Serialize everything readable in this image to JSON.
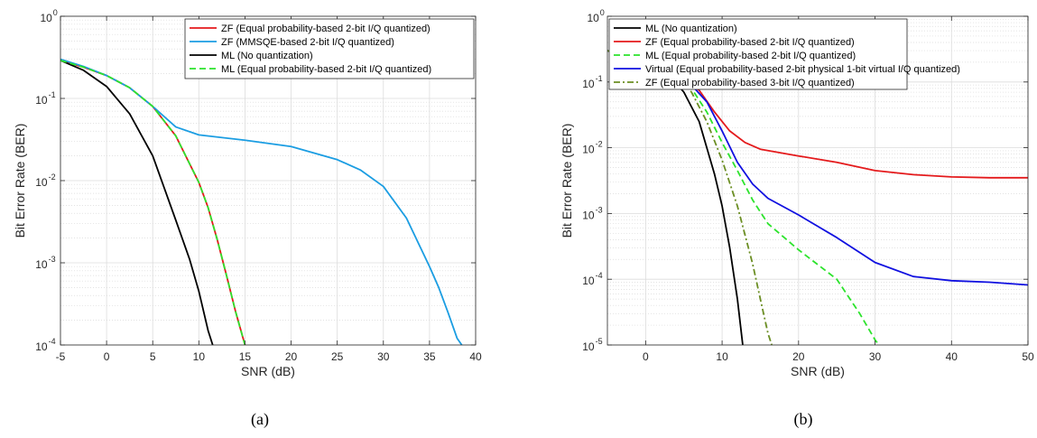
{
  "chart_data": [
    {
      "type": "line",
      "caption": "(a)",
      "xlabel": "SNR (dB)",
      "ylabel": "Bit Error Rate (BER)",
      "xlim": [
        -5,
        40
      ],
      "ylim": [
        0.0001,
        1
      ],
      "yscale": "log",
      "grid": true,
      "legend_position": "top-right",
      "xticks": [
        -5,
        0,
        5,
        10,
        15,
        20,
        25,
        30,
        35,
        40
      ],
      "yticks": [
        {
          "value": 1,
          "base": "10",
          "exp": "0"
        },
        {
          "value": 0.1,
          "base": "10",
          "exp": "-1"
        },
        {
          "value": 0.01,
          "base": "10",
          "exp": "-2"
        },
        {
          "value": 0.001,
          "base": "10",
          "exp": "-3"
        },
        {
          "value": 0.0001,
          "base": "10",
          "exp": "-4"
        }
      ],
      "series": [
        {
          "name": "ZF (Equal probability-based 2-bit I/Q quantized)",
          "color": "#e41a1c",
          "dash": "solid",
          "x": [
            -5,
            -2.5,
            0,
            2.5,
            5,
            7.5,
            10,
            11,
            12,
            13,
            14,
            15
          ],
          "y": [
            0.29,
            0.24,
            0.19,
            0.135,
            0.08,
            0.035,
            0.0095,
            0.0047,
            0.0019,
            0.0007,
            0.00025,
            0.0001
          ]
        },
        {
          "name": "ZF (MMSQE-based 2-bit I/Q quantized)",
          "color": "#1b9de2",
          "dash": "solid",
          "x": [
            -5,
            -2.5,
            0,
            2.5,
            5,
            7.5,
            10,
            15,
            20,
            25,
            27.5,
            30,
            32.5,
            35,
            36,
            37,
            38,
            38.5
          ],
          "y": [
            0.3,
            0.245,
            0.19,
            0.135,
            0.08,
            0.045,
            0.036,
            0.031,
            0.026,
            0.018,
            0.0135,
            0.0085,
            0.0035,
            0.0009,
            0.0005,
            0.00025,
            0.00012,
            0.0001
          ]
        },
        {
          "name": "ML (No quantization)",
          "color": "#000000",
          "dash": "solid",
          "x": [
            -5,
            -2.5,
            0,
            2.5,
            5,
            7.5,
            9,
            10,
            11,
            11.5
          ],
          "y": [
            0.29,
            0.22,
            0.14,
            0.065,
            0.02,
            0.0033,
            0.0011,
            0.00045,
            0.00015,
            0.0001
          ]
        },
        {
          "name": "ML (Equal probability-based 2-bit I/Q quantized)",
          "color": "#2ce32c",
          "dash": "dashed",
          "x": [
            -5,
            -2.5,
            0,
            2.5,
            5,
            7.5,
            10,
            11,
            12,
            13,
            14,
            15
          ],
          "y": [
            0.29,
            0.24,
            0.19,
            0.135,
            0.08,
            0.035,
            0.0095,
            0.0047,
            0.0019,
            0.0007,
            0.00025,
            0.0001
          ]
        }
      ]
    },
    {
      "type": "line",
      "caption": "(b)",
      "xlabel": "SNR (dB)",
      "ylabel": "Bit Error Rate (BER)",
      "xlim": [
        -5,
        50
      ],
      "ylim": [
        1e-05,
        1
      ],
      "yscale": "log",
      "grid": true,
      "legend_position": "top-left",
      "xticks": [
        0,
        10,
        20,
        30,
        40,
        50
      ],
      "yticks": [
        {
          "value": 1,
          "base": "10",
          "exp": "0"
        },
        {
          "value": 0.1,
          "base": "10",
          "exp": "-1"
        },
        {
          "value": 0.01,
          "base": "10",
          "exp": "-2"
        },
        {
          "value": 0.001,
          "base": "10",
          "exp": "-3"
        },
        {
          "value": 0.0001,
          "base": "10",
          "exp": "-4"
        },
        {
          "value": 1e-05,
          "base": "10",
          "exp": "-5"
        }
      ],
      "series": [
        {
          "name": "ML (No quantization)",
          "color": "#000000",
          "dash": "solid",
          "x": [
            -5,
            0,
            3,
            5,
            7,
            9,
            10,
            11,
            12,
            12.7
          ],
          "y": [
            0.3,
            0.2,
            0.13,
            0.07,
            0.025,
            0.004,
            0.0013,
            0.0003,
            5e-05,
            1e-05
          ]
        },
        {
          "name": "ZF (Equal probability-based 2-bit I/Q quantized)",
          "color": "#e41a1c",
          "dash": "solid",
          "x": [
            -5,
            0,
            4,
            7,
            9,
            11,
            13,
            15,
            20,
            25,
            30,
            35,
            40,
            45,
            50
          ],
          "y": [
            0.3,
            0.2,
            0.14,
            0.075,
            0.035,
            0.018,
            0.012,
            0.0095,
            0.0075,
            0.006,
            0.0045,
            0.0039,
            0.0036,
            0.0035,
            0.0035
          ]
        },
        {
          "name": "ML (Equal probability-based 2-bit I/Q quantized)",
          "color": "#2ce32c",
          "dash": "dashed",
          "x": [
            -5,
            0,
            4,
            6,
            8,
            10,
            12,
            14,
            16,
            20,
            25,
            28,
            30,
            30.5
          ],
          "y": [
            0.3,
            0.2,
            0.14,
            0.08,
            0.035,
            0.012,
            0.0045,
            0.0016,
            0.0007,
            0.00028,
            0.0001,
            3e-05,
            1.2e-05,
            1e-05
          ]
        },
        {
          "name": "Virtual (Equal probability-based 2-bit physical 1-bit virtual I/Q quantized)",
          "color": "#1010e0",
          "dash": "solid",
          "x": [
            -5,
            0,
            4,
            6,
            8,
            10,
            12,
            14,
            16,
            20,
            25,
            30,
            35,
            40,
            45,
            50
          ],
          "y": [
            0.3,
            0.2,
            0.14,
            0.09,
            0.05,
            0.018,
            0.006,
            0.0028,
            0.0017,
            0.00095,
            0.00043,
            0.00018,
            0.00011,
            9.5e-05,
            9e-05,
            8.2e-05
          ]
        },
        {
          "name": "ZF (Equal probability-based 3-bit I/Q quantized)",
          "color": "#6b8e23",
          "dash": "dashdot",
          "x": [
            -5,
            0,
            4,
            6,
            8,
            10,
            12,
            14,
            15,
            16,
            16.5
          ],
          "y": [
            0.3,
            0.2,
            0.13,
            0.07,
            0.025,
            0.0065,
            0.0013,
            0.00017,
            5e-05,
            1.5e-05,
            1e-05
          ]
        }
      ]
    }
  ]
}
